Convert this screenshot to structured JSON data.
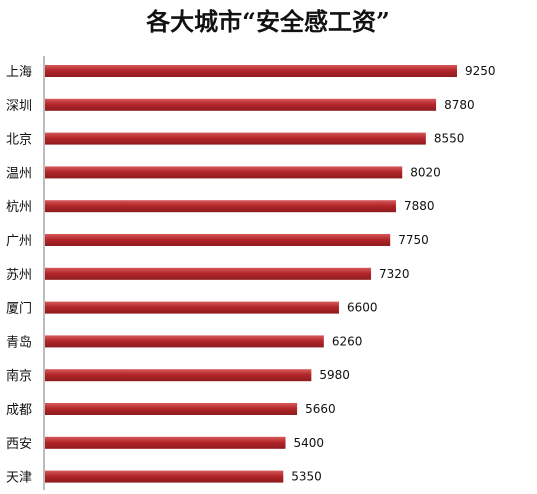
{
  "chart_data": {
    "type": "bar",
    "orientation": "horizontal",
    "title": "各大城市“安全感工资”",
    "categories": [
      "上海",
      "深圳",
      "北京",
      "温州",
      "杭州",
      "广州",
      "苏州",
      "厦门",
      "青岛",
      "南京",
      "成都",
      "西安",
      "天津"
    ],
    "values": [
      9250,
      8780,
      8550,
      8020,
      7880,
      7750,
      7320,
      6600,
      6260,
      5980,
      5660,
      5400,
      5350
    ],
    "xlim": [
      0,
      9250
    ],
    "grid": false,
    "legend": false,
    "bar_color": "#b3272a",
    "bar_highlight": "#d85a5c",
    "axis_color": "#7a7a7a"
  }
}
